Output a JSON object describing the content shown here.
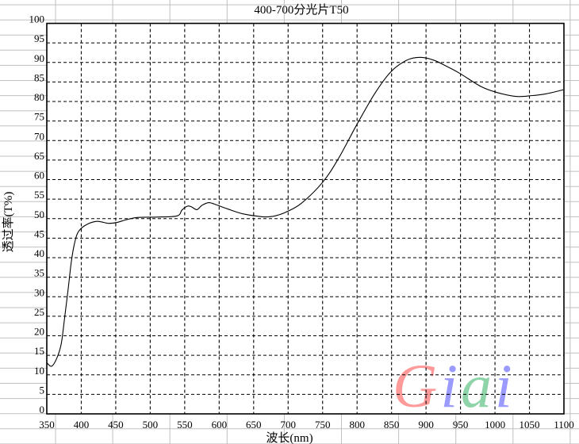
{
  "chart_data": {
    "type": "line",
    "title": "400-700分光片T50",
    "xlabel": "波长(nm)",
    "ylabel": "透过率(T%)",
    "xlim": [
      350,
      1100
    ],
    "ylim": [
      0,
      100
    ],
    "xticks": [
      350,
      400,
      450,
      500,
      550,
      600,
      650,
      700,
      750,
      800,
      850,
      900,
      950,
      1000,
      1050,
      1100
    ],
    "yticks": [
      0,
      5,
      10,
      15,
      20,
      25,
      30,
      35,
      40,
      45,
      50,
      55,
      60,
      65,
      70,
      75,
      80,
      85,
      90,
      95,
      100
    ],
    "grid": true,
    "grid_style": "dashed",
    "line_color": "#000000",
    "series": [
      {
        "x": [
          350,
          357,
          364.6,
          371,
          376,
          381,
          385.6,
          390,
          395,
          405,
          422,
          439,
          451,
          465,
          481.5,
          510,
          539,
          546,
          554,
          560,
          567.7,
          575,
          585,
          596.5,
          612,
          635,
          661.7,
          673,
          681,
          696,
          719,
          750,
          773,
          800,
          826.6,
          849.5,
          872.5,
          891.7,
          911,
          930,
          949,
          980,
          1003,
          1030,
          1053,
          1075,
          1099
        ],
        "y": [
          13.1,
          12.2,
          14.3,
          18,
          24.8,
          32,
          39,
          43.5,
          46.4,
          48.2,
          49.3,
          48.8,
          49.0,
          49.7,
          50.3,
          50.4,
          50.7,
          52.2,
          53.2,
          53.0,
          52.3,
          53.4,
          54.1,
          53.5,
          52.5,
          51.2,
          50.5,
          50.5,
          50.7,
          51.6,
          53.9,
          59.3,
          65.4,
          74.2,
          82.3,
          87.7,
          90.6,
          91.3,
          90.6,
          89.0,
          87.2,
          83.8,
          82.3,
          81.3,
          81.5,
          82.0,
          83.0
        ]
      }
    ]
  },
  "watermark": {
    "text": "Giai",
    "colors": [
      "#ff9a9a",
      "#9a9aff",
      "#8fd4a8",
      "#9a9aff"
    ]
  }
}
